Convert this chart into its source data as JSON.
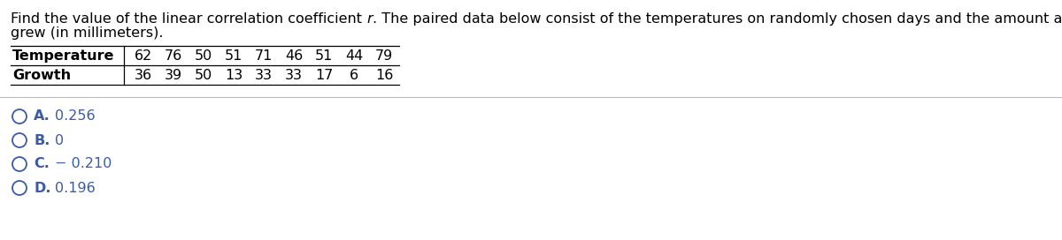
{
  "line1_pre": "Find the value of the linear correlation coefficient ",
  "line1_italic": "r",
  "line1_post": ". The paired data below consist of the temperatures on randomly chosen days and the amount a certain kind of plant",
  "line2": "grew (in millimeters).",
  "temp_label": "Temperature",
  "growth_label": "Growth",
  "temp_vals": [
    "62",
    "76",
    "50",
    "51",
    "71",
    "46",
    "51",
    "44",
    "79"
  ],
  "growth_vals": [
    "36",
    "39",
    "50",
    "13",
    "33",
    "33",
    "17",
    "6",
    "16"
  ],
  "options": [
    {
      "letter": "A.",
      "text": "0.256"
    },
    {
      "letter": "B.",
      "text": "0"
    },
    {
      "letter": "C.",
      "text": "− 0.210"
    },
    {
      "letter": "D.",
      "text": "0.196"
    }
  ],
  "bg_color": "#ffffff",
  "text_color": "#000000",
  "option_color": "#3a5aaa",
  "font_size": 11.5,
  "table_font_size": 11.5,
  "sep_color": "#bbbbbb"
}
